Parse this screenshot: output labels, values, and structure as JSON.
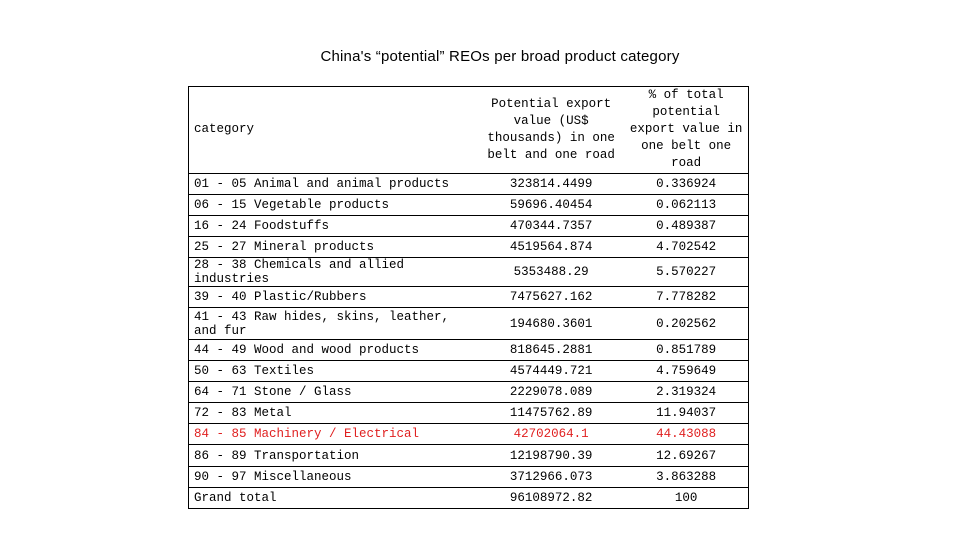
{
  "title": "China's “potential” REOs per broad product category",
  "table": {
    "headers": {
      "category": "category",
      "export_value": "Potential export value (US$ thousands) in one belt and one road",
      "percent": "% of total potential export value in one belt one road"
    },
    "rows": [
      {
        "category": "01 - 05 Animal and animal products",
        "value": "323814.4499",
        "pct": "0.336924"
      },
      {
        "category": "06 - 15 Vegetable products",
        "value": "59696.40454",
        "pct": "0.062113"
      },
      {
        "category": "16 - 24 Foodstuffs",
        "value": "470344.7357",
        "pct": "0.489387"
      },
      {
        "category": "25 - 27 Mineral products",
        "value": "4519564.874",
        "pct": "4.702542"
      },
      {
        "category": "28 - 38 Chemicals and allied industries",
        "value": "5353488.29",
        "pct": "5.570227"
      },
      {
        "category": "39 - 40 Plastic/Rubbers",
        "value": "7475627.162",
        "pct": "7.778282"
      },
      {
        "category": "41 - 43 Raw hides, skins, leather, and fur",
        "value": "194680.3601",
        "pct": "0.202562"
      },
      {
        "category": "44 - 49 Wood and wood products",
        "value": "818645.2881",
        "pct": "0.851789"
      },
      {
        "category": "50 - 63 Textiles",
        "value": "4574449.721",
        "pct": "4.759649"
      },
      {
        "category": "64 - 71 Stone / Glass",
        "value": "2229078.089",
        "pct": "2.319324"
      },
      {
        "category": "72 - 83 Metal",
        "value": "11475762.89",
        "pct": "11.94037"
      },
      {
        "category": "84 - 85 Machinery / Electrical",
        "value": "42702064.1",
        "pct": "44.43088"
      },
      {
        "category": "86 - 89 Transportation",
        "value": "12198790.39",
        "pct": "12.69267"
      },
      {
        "category": "90 - 97 Miscellaneous",
        "value": "3712966.073",
        "pct": "3.863288"
      },
      {
        "category": "Grand total",
        "value": "96108972.82",
        "pct": "100"
      }
    ],
    "highlight_color": "#e02020"
  }
}
